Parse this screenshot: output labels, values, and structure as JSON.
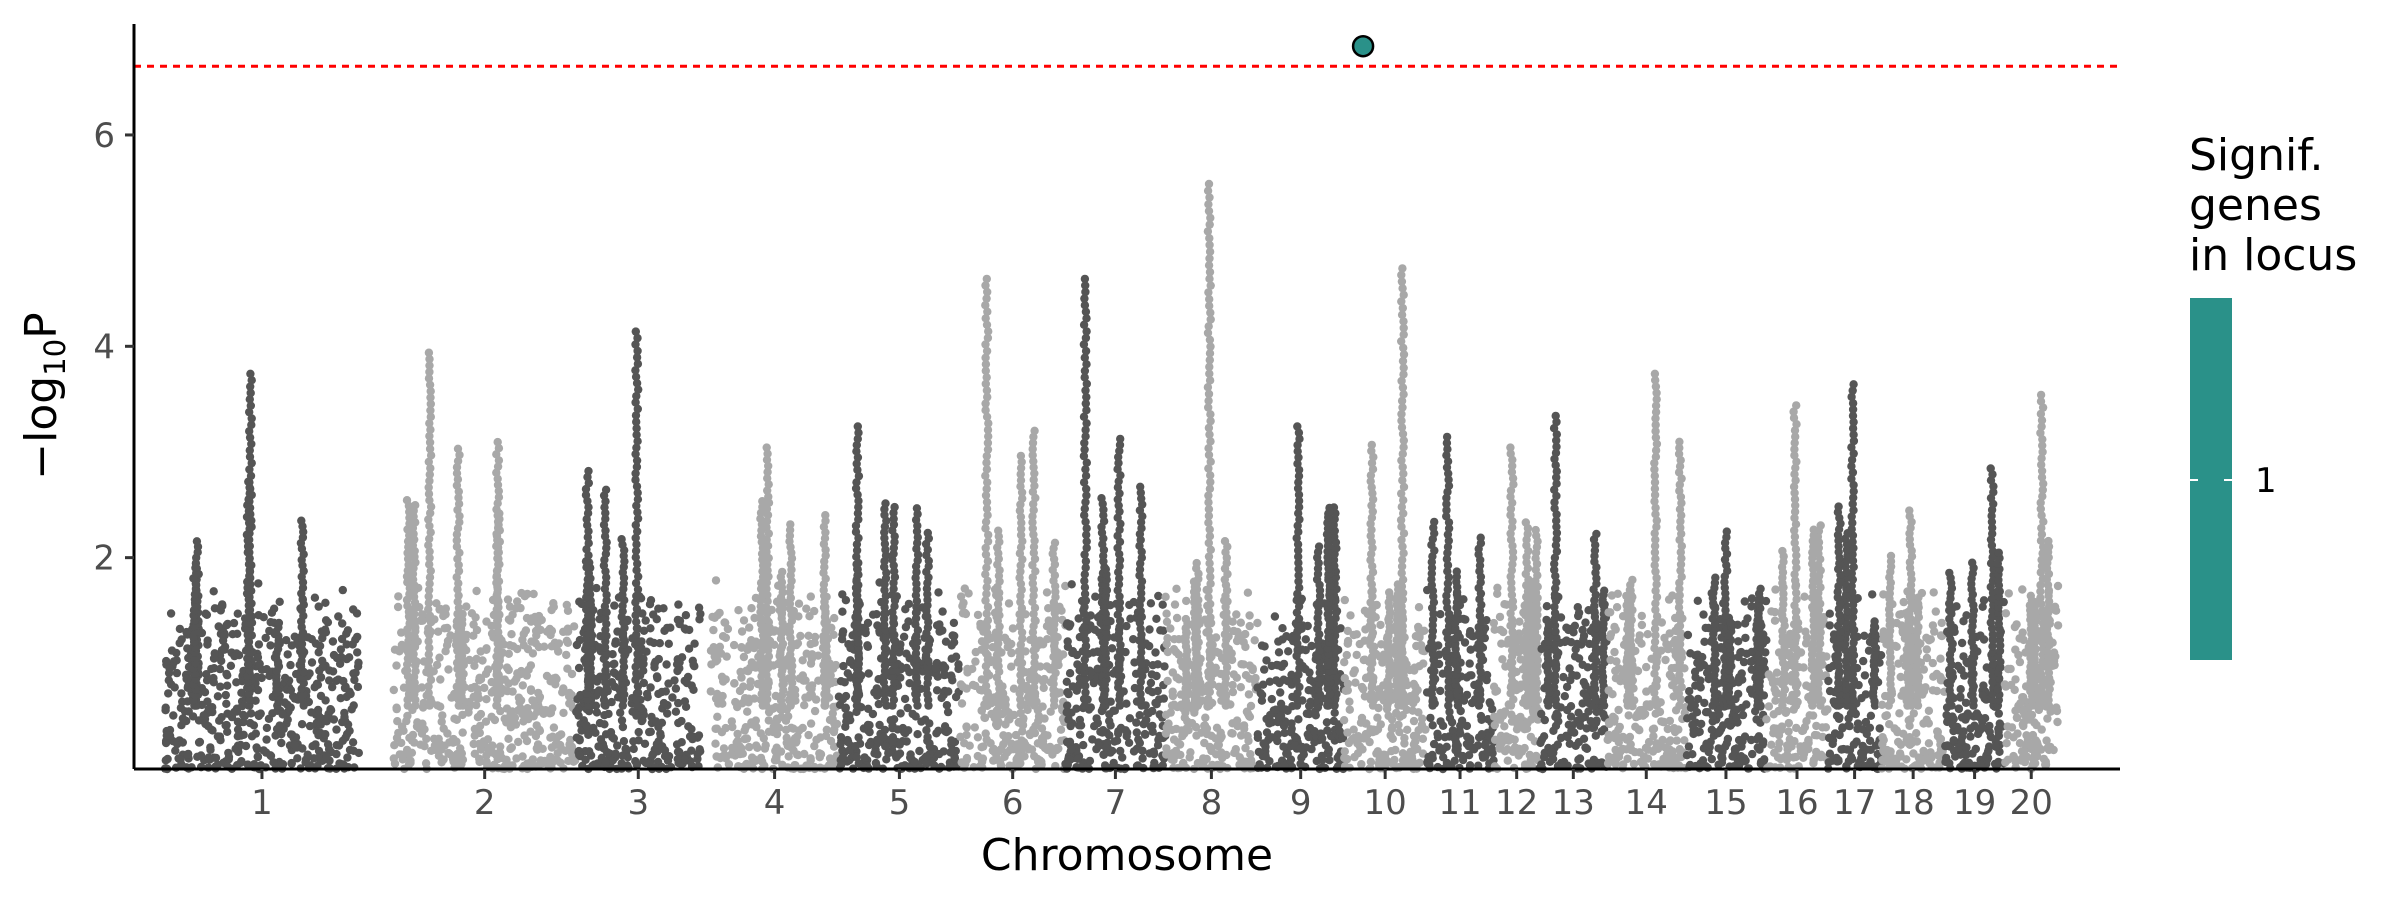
{
  "chart_data": {
    "type": "scatter",
    "title": "",
    "xlabel": "Chromosome",
    "ylabel_parts": [
      "−log",
      "10",
      "P"
    ],
    "ylim": [
      0,
      7.05
    ],
    "yticks": [
      2,
      4,
      6
    ],
    "significance_threshold": 6.65,
    "threshold_color": "#ff0000",
    "chromosome_colors": [
      "#555555",
      "#a8a8a8"
    ],
    "highlight_color": "#2a9189",
    "chromosomes": [
      {
        "label": "1",
        "span": [
          0.0,
          0.101
        ],
        "peak": 3.8
      },
      {
        "label": "2",
        "span": [
          0.119,
          0.214
        ],
        "peak": 4.0
      },
      {
        "label": "3",
        "span": [
          0.214,
          0.279
        ],
        "peak": 4.2
      },
      {
        "label": "4",
        "span": [
          0.284,
          0.351
        ],
        "peak": 3.1
      },
      {
        "label": "5",
        "span": [
          0.351,
          0.414
        ],
        "peak": 3.3
      },
      {
        "label": "6",
        "span": [
          0.414,
          0.469
        ],
        "peak": 4.7
      },
      {
        "label": "7",
        "span": [
          0.469,
          0.521
        ],
        "peak": 4.7
      },
      {
        "label": "8",
        "span": [
          0.521,
          0.569
        ],
        "peak": 5.6
      },
      {
        "label": "9",
        "span": [
          0.569,
          0.614
        ],
        "peak": 3.3
      },
      {
        "label": "10",
        "span": [
          0.614,
          0.657
        ],
        "peak": 4.8
      },
      {
        "label": "11",
        "span": [
          0.657,
          0.692
        ],
        "peak": 3.2
      },
      {
        "label": "12",
        "span": [
          0.692,
          0.716
        ],
        "peak": 3.1
      },
      {
        "label": "13",
        "span": [
          0.716,
          0.751
        ],
        "peak": 3.4
      },
      {
        "label": "14",
        "span": [
          0.751,
          0.792
        ],
        "peak": 3.8
      },
      {
        "label": "15",
        "span": [
          0.792,
          0.834
        ],
        "peak": 2.3
      },
      {
        "label": "16",
        "span": [
          0.834,
          0.866
        ],
        "peak": 3.5
      },
      {
        "label": "17",
        "span": [
          0.866,
          0.894
        ],
        "peak": 3.7
      },
      {
        "label": "18",
        "span": [
          0.894,
          0.927
        ],
        "peak": 2.5
      },
      {
        "label": "19",
        "span": [
          0.927,
          0.958
        ],
        "peak": 2.9
      },
      {
        "label": "20",
        "span": [
          0.958,
          0.986
        ],
        "peak": 3.6
      }
    ],
    "significant_points": [
      {
        "chromosome": "10",
        "position": 0.624,
        "value": 6.84,
        "genes_in_locus": 1
      }
    ],
    "legend": {
      "title_lines": [
        "Signif.",
        "genes",
        "in locus"
      ],
      "labels": [
        "1"
      ],
      "placement": "right"
    }
  }
}
